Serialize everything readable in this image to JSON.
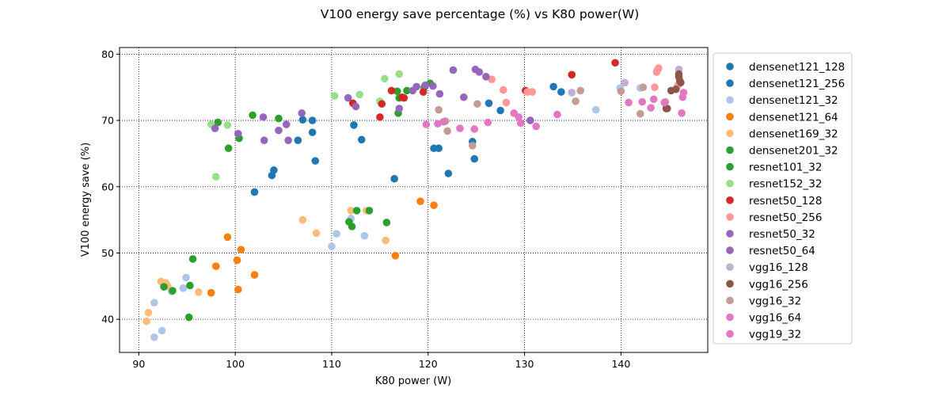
{
  "chart_data": {
    "type": "scatter",
    "title": "V100 energy save percentage (%) vs K80 power(W)",
    "xlabel": "K80 power (W)",
    "ylabel": "V100 energy save (%)",
    "xlim": [
      88,
      149
    ],
    "ylim": [
      35,
      81
    ],
    "xticks": [
      90,
      100,
      110,
      120,
      130,
      140
    ],
    "yticks": [
      40,
      50,
      60,
      70,
      80
    ],
    "grid": true,
    "grid_style": "dotted",
    "legend_position": "outside-right",
    "series": [
      {
        "name": "densenet121_128",
        "color": "#1f77b4",
        "points": [
          [
            133.0,
            75.1
          ],
          [
            133.8,
            74.3
          ],
          [
            126.3,
            72.6
          ],
          [
            127.5,
            71.5
          ]
        ]
      },
      {
        "name": "densenet121_256",
        "color": "#1f77b4",
        "points": [
          [
            104.0,
            62.5
          ],
          [
            103.8,
            61.7
          ],
          [
            102.0,
            59.2
          ],
          [
            107.0,
            70.1
          ],
          [
            106.5,
            67.0
          ],
          [
            108.0,
            70.0
          ],
          [
            108.0,
            68.2
          ],
          [
            108.3,
            63.9
          ],
          [
            112.3,
            69.3
          ],
          [
            113.1,
            67.1
          ],
          [
            116.5,
            61.2
          ],
          [
            120.6,
            65.8
          ],
          [
            121.1,
            65.8
          ],
          [
            122.1,
            62.0
          ],
          [
            124.6,
            66.8
          ],
          [
            124.8,
            64.2
          ]
        ]
      },
      {
        "name": "densenet121_32",
        "color": "#aec7e8",
        "points": [
          [
            91.6,
            42.5
          ],
          [
            91.6,
            37.3
          ],
          [
            92.4,
            38.3
          ],
          [
            93.4,
            44.2
          ],
          [
            94.6,
            44.7
          ],
          [
            94.9,
            46.3
          ],
          [
            97.5,
            44.0
          ],
          [
            110.0,
            51.0
          ],
          [
            110.5,
            52.9
          ],
          [
            112.0,
            55.2
          ],
          [
            113.4,
            52.6
          ],
          [
            134.9,
            74.2
          ],
          [
            137.4,
            71.6
          ],
          [
            139.9,
            74.9
          ],
          [
            140.4,
            75.7
          ],
          [
            142.0,
            74.9
          ],
          [
            146.0,
            77.7
          ]
        ]
      },
      {
        "name": "densenet121_64",
        "color": "#ff7f0e",
        "points": [
          [
            97.5,
            44.0
          ],
          [
            98.0,
            48.0
          ],
          [
            99.2,
            52.4
          ],
          [
            100.2,
            48.9
          ],
          [
            100.3,
            44.5
          ],
          [
            100.6,
            50.5
          ],
          [
            102.0,
            46.7
          ],
          [
            116.6,
            49.6
          ],
          [
            119.2,
            57.8
          ],
          [
            120.6,
            57.2
          ]
        ]
      },
      {
        "name": "densenet169_32",
        "color": "#ffbb78",
        "points": [
          [
            90.8,
            39.7
          ],
          [
            91.0,
            41.0
          ],
          [
            92.3,
            45.7
          ],
          [
            92.8,
            45.5
          ],
          [
            93.0,
            45.0
          ],
          [
            96.2,
            44.1
          ],
          [
            107.0,
            55.0
          ],
          [
            108.4,
            53.0
          ],
          [
            112.0,
            56.4
          ],
          [
            113.6,
            56.4
          ],
          [
            115.6,
            51.9
          ]
        ]
      },
      {
        "name": "densenet201_32",
        "color": "#2ca02c",
        "points": [
          [
            92.6,
            44.9
          ],
          [
            93.5,
            44.3
          ],
          [
            95.2,
            40.3
          ],
          [
            95.3,
            45.1
          ],
          [
            95.6,
            49.1
          ],
          [
            111.8,
            54.7
          ],
          [
            112.1,
            54.0
          ],
          [
            112.6,
            56.4
          ],
          [
            113.9,
            56.4
          ],
          [
            115.7,
            54.6
          ]
        ]
      },
      {
        "name": "resnet101_32",
        "color": "#2ca02c",
        "points": [
          [
            98.2,
            69.7
          ],
          [
            99.3,
            65.8
          ],
          [
            100.4,
            67.3
          ],
          [
            101.8,
            70.8
          ],
          [
            104.5,
            70.3
          ],
          [
            116.8,
            74.4
          ],
          [
            116.9,
            71.1
          ],
          [
            117.0,
            73.4
          ],
          [
            117.8,
            74.5
          ],
          [
            119.6,
            75.0
          ],
          [
            120.2,
            75.6
          ]
        ]
      },
      {
        "name": "resnet152_32",
        "color": "#98df8a",
        "points": [
          [
            97.5,
            69.4
          ],
          [
            98.0,
            61.5
          ],
          [
            99.2,
            69.3
          ],
          [
            110.3,
            73.7
          ],
          [
            112.9,
            73.9
          ],
          [
            115.0,
            72.9
          ],
          [
            115.5,
            76.3
          ],
          [
            117.0,
            77.0
          ]
        ]
      },
      {
        "name": "resnet50_128",
        "color": "#d62728",
        "points": [
          [
            112.2,
            72.6
          ],
          [
            115.0,
            70.5
          ],
          [
            115.2,
            72.5
          ],
          [
            116.2,
            74.5
          ],
          [
            117.3,
            73.5
          ],
          [
            117.5,
            73.4
          ],
          [
            119.5,
            74.3
          ],
          [
            130.1,
            74.5
          ],
          [
            134.9,
            76.9
          ],
          [
            139.4,
            78.7
          ],
          [
            144.7,
            71.8
          ]
        ]
      },
      {
        "name": "resnet50_256",
        "color": "#ff9896",
        "points": [
          [
            126.6,
            76.2
          ],
          [
            127.8,
            74.6
          ],
          [
            128.1,
            72.7
          ],
          [
            130.3,
            74.3
          ],
          [
            130.8,
            74.3
          ],
          [
            143.5,
            75.0
          ],
          [
            143.7,
            77.3
          ],
          [
            143.8,
            77.6
          ],
          [
            143.9,
            77.9
          ],
          [
            145.9,
            75.3
          ]
        ]
      },
      {
        "name": "resnet50_32",
        "color": "#9467bd",
        "points": [
          [
            97.9,
            68.8
          ],
          [
            100.3,
            68.0
          ],
          [
            102.9,
            70.5
          ],
          [
            103.0,
            67.0
          ],
          [
            104.5,
            68.5
          ],
          [
            105.3,
            69.4
          ],
          [
            105.5,
            67.0
          ],
          [
            106.9,
            71.1
          ],
          [
            111.7,
            73.4
          ],
          [
            112.5,
            72.1
          ],
          [
            117.0,
            71.8
          ]
        ]
      },
      {
        "name": "resnet50_64",
        "color": "#9467bd",
        "points": [
          [
            118.4,
            74.5
          ],
          [
            118.8,
            75.1
          ],
          [
            119.7,
            75.3
          ],
          [
            120.5,
            75.2
          ],
          [
            121.2,
            74.0
          ],
          [
            122.6,
            77.6
          ],
          [
            123.7,
            73.5
          ],
          [
            124.9,
            77.7
          ],
          [
            125.3,
            77.3
          ],
          [
            126.0,
            76.6
          ],
          [
            130.6,
            70.0
          ]
        ]
      },
      {
        "name": "vgg16_128",
        "color": "#c5b0d5",
        "points": [
          [
            134.9,
            74.2
          ],
          [
            140.4,
            75.7
          ],
          [
            146.0,
            77.7
          ]
        ]
      },
      {
        "name": "vgg16_256",
        "color": "#8c564b",
        "points": [
          [
            145.2,
            74.5
          ],
          [
            145.7,
            74.7
          ],
          [
            146.0,
            77.0
          ],
          [
            146.0,
            76.6
          ],
          [
            146.1,
            76.0
          ],
          [
            146.2,
            75.7
          ],
          [
            144.8,
            71.8
          ]
        ]
      },
      {
        "name": "vgg16_32",
        "color": "#c49c94",
        "points": [
          [
            121.1,
            71.6
          ],
          [
            121.8,
            69.9
          ],
          [
            122.0,
            68.4
          ],
          [
            124.6,
            66.2
          ],
          [
            125.1,
            72.5
          ],
          [
            135.3,
            72.9
          ],
          [
            135.8,
            74.5
          ],
          [
            140.0,
            74.4
          ],
          [
            142.0,
            71.0
          ],
          [
            142.3,
            75.0
          ],
          [
            144.6,
            72.8
          ]
        ]
      },
      {
        "name": "vgg16_64",
        "color": "#e377c2",
        "points": [
          [
            121.0,
            69.5
          ],
          [
            121.6,
            69.8
          ],
          [
            123.3,
            68.8
          ],
          [
            124.8,
            68.7
          ],
          [
            126.2,
            69.7
          ],
          [
            128.9,
            71.1
          ],
          [
            129.4,
            70.5
          ],
          [
            129.6,
            69.6
          ],
          [
            140.8,
            72.7
          ],
          [
            142.2,
            72.8
          ],
          [
            143.4,
            73.2
          ]
        ]
      },
      {
        "name": "vgg19_32",
        "color": "#e377c2",
        "points": [
          [
            119.8,
            69.4
          ],
          [
            131.2,
            69.1
          ],
          [
            133.4,
            70.9
          ],
          [
            143.1,
            71.9
          ],
          [
            146.3,
            71.1
          ],
          [
            146.4,
            73.5
          ],
          [
            146.5,
            74.2
          ],
          [
            144.5,
            72.7
          ]
        ]
      }
    ]
  }
}
